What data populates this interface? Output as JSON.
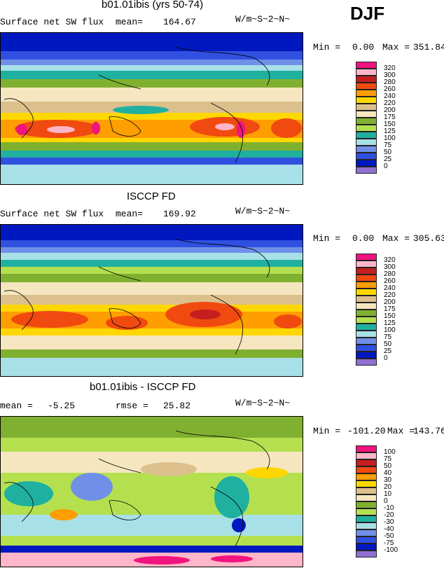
{
  "season": "DJF",
  "units": "W/m~S~2~N~",
  "panels": [
    {
      "title": "b01.01ibis (yrs 50-74)",
      "left_label": "Surface net SW flux",
      "stat_label": "mean=",
      "stat_value": "164.67",
      "minmax_label": "Min =",
      "min_value": "0.00",
      "max_label": "Max =",
      "max_value": "351.84"
    },
    {
      "title": "ISCCP FD",
      "left_label": "Surface net SW flux",
      "stat_label": "mean=",
      "stat_value": "169.92",
      "minmax_label": "Min =",
      "min_value": "0.00",
      "max_label": "Max =",
      "max_value": "305.63"
    },
    {
      "title": "b01.01ibis - ISCCP FD",
      "left_label": "mean =",
      "left_value": "-5.25",
      "stat_label": "rmse =",
      "stat_value": "25.82",
      "minmax_label": "Min =",
      "min_value": "-101.20",
      "max_label": "Max =",
      "max_value": "143.76"
    }
  ],
  "colorbars": {
    "flux_levels": [
      "320",
      "300",
      "280",
      "260",
      "240",
      "220",
      "200",
      "175",
      "150",
      "125",
      "100",
      "75",
      "50",
      "25",
      "0"
    ],
    "flux_colors": [
      "#f0147f",
      "#ffb6c8",
      "#c41e1e",
      "#f04a10",
      "#ff9e00",
      "#ffd700",
      "#dcc08c",
      "#f5e6c0",
      "#80b030",
      "#b4e050",
      "#20b0a0",
      "#a8e0e8",
      "#7090e8",
      "#3050e0",
      "#0018c0",
      "#9070d0"
    ],
    "diff_levels": [
      "100",
      "75",
      "50",
      "40",
      "30",
      "20",
      "10",
      "0",
      "-10",
      "-20",
      "-30",
      "-40",
      "-50",
      "-75",
      "-100"
    ],
    "diff_colors": [
      "#f0147f",
      "#ffb6c8",
      "#c41e1e",
      "#f04a10",
      "#ff9e00",
      "#ffd700",
      "#dcc08c",
      "#f5e6c0",
      "#80b030",
      "#b4e050",
      "#20b0a0",
      "#a8e0e8",
      "#7090e8",
      "#3050e0",
      "#0018c0",
      "#9070d0"
    ]
  },
  "chart_data": [
    {
      "type": "heatmap",
      "title": "b01.01ibis (yrs 50-74)",
      "variable": "Surface net SW flux",
      "units": "W/m~S~2~N~",
      "mean": 164.67,
      "min": 0.0,
      "max": 351.84,
      "contour_levels": [
        0,
        25,
        50,
        75,
        100,
        125,
        150,
        175,
        200,
        220,
        240,
        260,
        280,
        300,
        320
      ]
    },
    {
      "type": "heatmap",
      "title": "ISCCP FD",
      "variable": "Surface net SW flux",
      "units": "W/m~S~2~N~",
      "mean": 169.92,
      "min": 0.0,
      "max": 305.63,
      "contour_levels": [
        0,
        25,
        50,
        75,
        100,
        125,
        150,
        175,
        200,
        220,
        240,
        260,
        280,
        300,
        320
      ]
    },
    {
      "type": "heatmap",
      "title": "b01.01ibis - ISCCP FD",
      "units": "W/m~S~2~N~",
      "mean": -5.25,
      "rmse": 25.82,
      "min": -101.2,
      "max": 143.76,
      "contour_levels": [
        -100,
        -75,
        -50,
        -40,
        -30,
        -20,
        -10,
        0,
        10,
        20,
        30,
        40,
        50,
        75,
        100
      ]
    }
  ]
}
